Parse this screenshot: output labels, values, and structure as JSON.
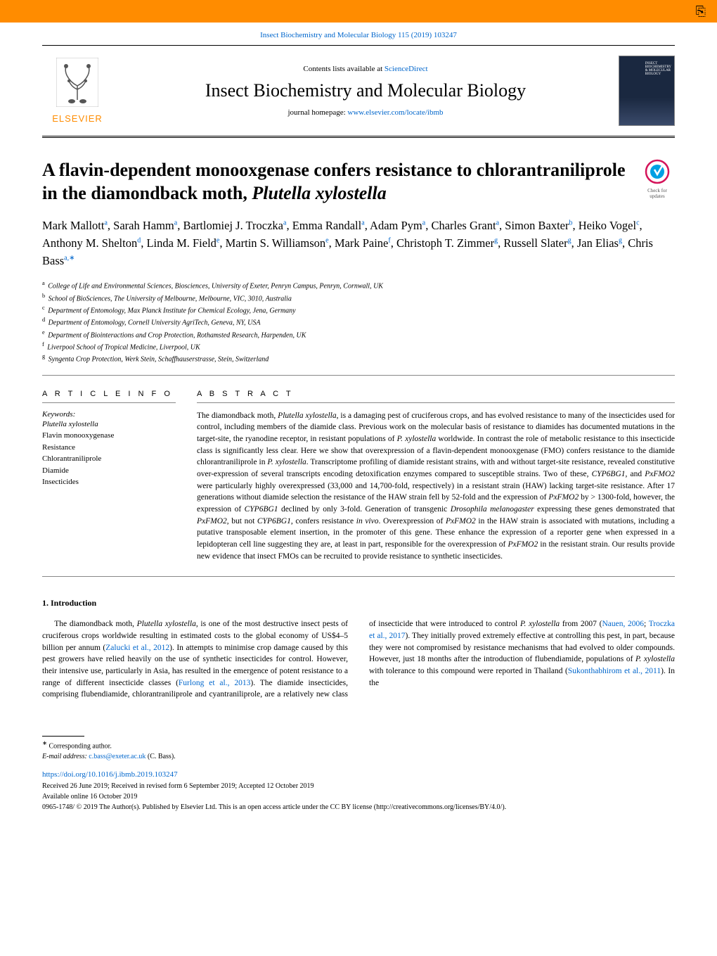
{
  "citation": "Insect Biochemistry and Molecular Biology 115 (2019) 103247",
  "contents_label": "Contents lists available at ",
  "sciencedirect": "ScienceDirect",
  "journal_title": "Insect Biochemistry and Molecular Biology",
  "homepage_label": "journal homepage: ",
  "homepage_url": "www.elsevier.com/locate/ibmb",
  "publisher": "ELSEVIER",
  "check_updates": "Check for updates",
  "title_part1": "A flavin-dependent monooxgenase confers resistance to chlorantraniliprole in the diamondback moth, ",
  "title_italic": "Plutella xylostella",
  "authors": [
    {
      "name": "Mark Mallott",
      "aff": "a"
    },
    {
      "name": "Sarah Hamm",
      "aff": "a"
    },
    {
      "name": "Bartlomiej J. Troczka",
      "aff": "a"
    },
    {
      "name": "Emma Randall",
      "aff": "a"
    },
    {
      "name": "Adam Pym",
      "aff": "a"
    },
    {
      "name": "Charles Grant",
      "aff": "a"
    },
    {
      "name": "Simon Baxter",
      "aff": "b"
    },
    {
      "name": "Heiko Vogel",
      "aff": "c"
    },
    {
      "name": "Anthony M. Shelton",
      "aff": "d"
    },
    {
      "name": "Linda M. Field",
      "aff": "e"
    },
    {
      "name": "Martin S. Williamson",
      "aff": "e"
    },
    {
      "name": "Mark Paine",
      "aff": "f"
    },
    {
      "name": "Christoph T. Zimmer",
      "aff": "g"
    },
    {
      "name": "Russell Slater",
      "aff": "g"
    },
    {
      "name": "Jan Elias",
      "aff": "g"
    },
    {
      "name": "Chris Bass",
      "aff": "a,",
      "corr": true
    }
  ],
  "affiliations": {
    "a": "College of Life and Environmental Sciences, Biosciences, University of Exeter, Penryn Campus, Penryn, Cornwall, UK",
    "b": "School of BioSciences, The University of Melbourne, Melbourne, VIC, 3010, Australia",
    "c": "Department of Entomology, Max Planck Institute for Chemical Ecology, Jena, Germany",
    "d": "Department of Entomology, Cornell University AgriTech, Geneva, NY, USA",
    "e": "Department of Biointeractions and Crop Protection, Rothamsted Research, Harpenden, UK",
    "f": "Liverpool School of Tropical Medicine, Liverpool, UK",
    "g": "Syngenta Crop Protection, Werk Stein, Schaffhauserstrasse, Stein, Switzerland"
  },
  "article_info_heading": "A R T I C L E  I N F O",
  "abstract_heading": "A B S T R A C T",
  "keywords_label": "Keywords:",
  "keywords": [
    "Plutella xylostella",
    "Flavin monooxygenase",
    "Resistance",
    "Chlorantraniliprole",
    "Diamide",
    "Insecticides"
  ],
  "abstract": "The diamondback moth, Plutella xylostella, is a damaging pest of cruciferous crops, and has evolved resistance to many of the insecticides used for control, including members of the diamide class. Previous work on the molecular basis of resistance to diamides has documented mutations in the target-site, the ryanodine receptor, in resistant populations of P. xylostella worldwide. In contrast the role of metabolic resistance to this insecticide class is significantly less clear. Here we show that overexpression of a flavin-dependent monooxgenase (FMO) confers resistance to the diamide chlorantraniliprole in P. xylostella. Transcriptome profiling of diamide resistant strains, with and without target-site resistance, revealed constitutive over-expression of several transcripts encoding detoxification enzymes compared to susceptible strains. Two of these, CYP6BG1, and PxFMO2 were particularly highly overexpressed (33,000 and 14,700-fold, respectively) in a resistant strain (HAW) lacking target-site resistance. After 17 generations without diamide selection the resistance of the HAW strain fell by 52-fold and the expression of PxFMO2 by > 1300-fold, however, the expression of CYP6BG1 declined by only 3-fold. Generation of transgenic Drosophila melanogaster expressing these genes demonstrated that PxFMO2, but not CYP6BG1, confers resistance in vivo. Overexpression of PxFMO2 in the HAW strain is associated with mutations, including a putative transposable element insertion, in the promoter of this gene. These enhance the expression of a reporter gene when expressed in a lepidopteran cell line suggesting they are, at least in part, responsible for the overexpression of PxFMO2 in the resistant strain. Our results provide new evidence that insect FMOs can be recruited to provide resistance to synthetic insecticides.",
  "section1_heading": "1. Introduction",
  "intro_p1_a": "The diamondback moth, ",
  "intro_p1_b": "Plutella xylostella",
  "intro_p1_c": ", is one of the most destructive insect pests of cruciferous crops worldwide resulting in estimated costs to the global economy of US$4–5 billion per annum (",
  "intro_ref1": "Zalucki et al., 2012",
  "intro_p1_d": "). In attempts to minimise crop damage caused by this pest growers have relied heavily on the use of synthetic insecticides for control. However, their intensive use, particularly in Asia, has resulted in the emergence of potent resistance to a range of different insecticide classes (",
  "intro_ref2": "Furlong et al., 2013",
  "intro_p1_e": "). The diamide insecticides, comprising flubendiamide, chlorantraniliprole and cyantraniliprole, are a relatively new class of insecticide that were introduced to control ",
  "intro_p1_f": "P. xylostella",
  "intro_p1_g": " from 2007 (",
  "intro_ref3": "Nauen, 2006",
  "intro_p1_h": "; ",
  "intro_ref4": "Troczka et al., 2017",
  "intro_p1_i": "). They initially proved extremely effective at controlling this pest, in part, because they were not compromised by resistance mechanisms that had evolved to older compounds. However, just 18 months after the introduction of flubendiamide, populations of ",
  "intro_p1_j": "P. xylostella",
  "intro_p1_k": " with tolerance to this compound were reported in Thailand (",
  "intro_ref5": "Sukonthabhirom et al., 2011",
  "intro_p1_l": "). In the",
  "corresponding_label": "Corresponding author.",
  "email_label": "E-mail address:",
  "email": "c.bass@exeter.ac.uk",
  "email_name": " (C. Bass).",
  "doi": "https://doi.org/10.1016/j.ibmb.2019.103247",
  "received": "Received 26 June 2019; Received in revised form 6 September 2019; Accepted 12 October 2019",
  "available": "Available online 16 October 2019",
  "copyright": "0965-1748/ © 2019 The Author(s). Published by Elsevier Ltd. This is an open access article under the CC BY license (http://creativecommons.org/licenses/BY/4.0/)."
}
